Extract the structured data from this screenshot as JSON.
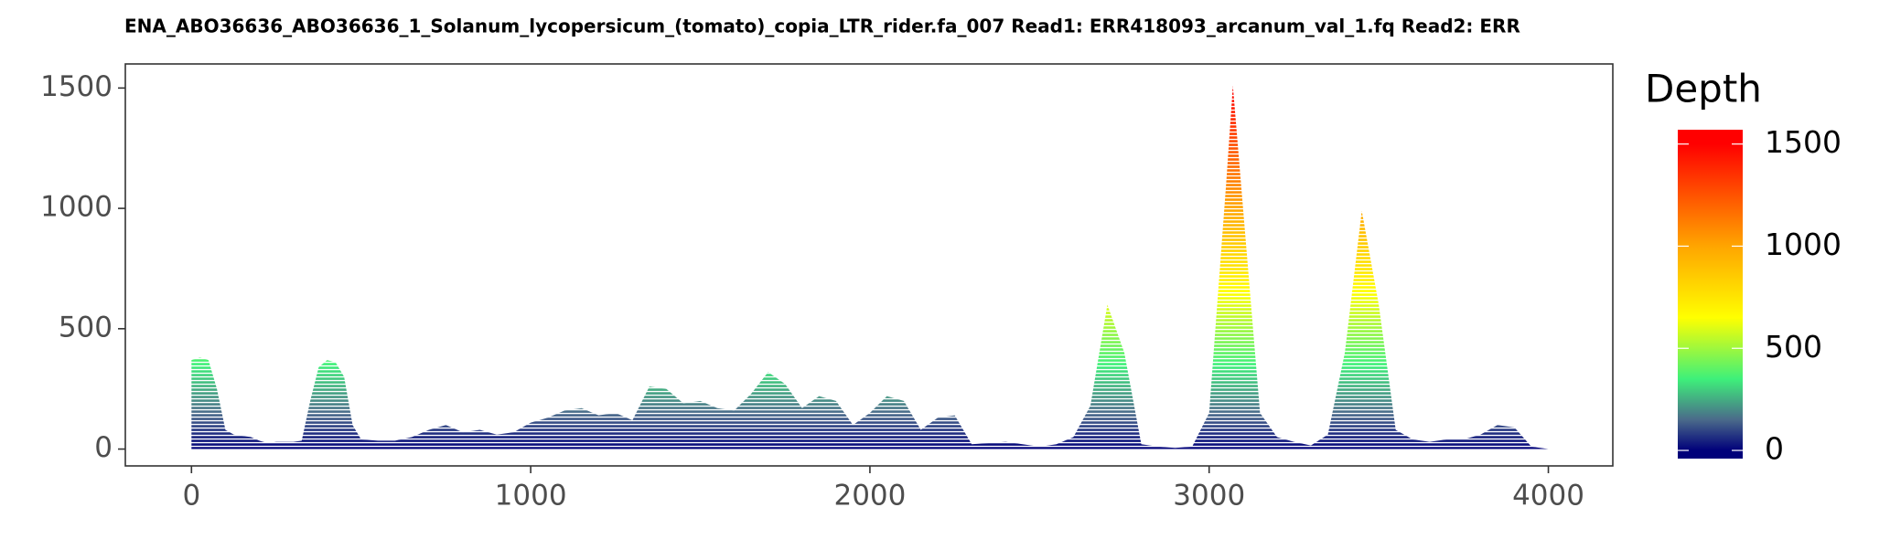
{
  "chart_data": {
    "type": "area",
    "title": "ENA_ABO36636_ABO36636_1_Solanum_lycopersicum_(tomato)_copia_LTR_rider.fa_007   Read1: ERR418093_arcanum_val_1.fq   Read2: ERR",
    "legend_title": "Depth",
    "x": [
      0,
      25,
      50,
      75,
      100,
      125,
      150,
      175,
      200,
      225,
      250,
      300,
      325,
      350,
      375,
      400,
      425,
      450,
      475,
      500,
      550,
      600,
      650,
      700,
      750,
      800,
      850,
      900,
      950,
      1000,
      1050,
      1100,
      1150,
      1200,
      1250,
      1300,
      1350,
      1400,
      1450,
      1500,
      1550,
      1600,
      1650,
      1700,
      1750,
      1800,
      1850,
      1900,
      1950,
      2000,
      2050,
      2100,
      2150,
      2200,
      2250,
      2300,
      2350,
      2400,
      2450,
      2500,
      2550,
      2600,
      2650,
      2700,
      2750,
      2800,
      2850,
      2900,
      2950,
      3000,
      3050,
      3070,
      3100,
      3150,
      3200,
      3250,
      3300,
      3350,
      3400,
      3450,
      3500,
      3550,
      3600,
      3650,
      3700,
      3750,
      3800,
      3850,
      3900,
      3950,
      4000
    ],
    "values": [
      370,
      380,
      370,
      250,
      80,
      60,
      55,
      50,
      35,
      25,
      30,
      30,
      35,
      200,
      340,
      370,
      360,
      300,
      100,
      40,
      35,
      35,
      50,
      80,
      100,
      70,
      80,
      60,
      70,
      110,
      130,
      160,
      170,
      140,
      150,
      120,
      260,
      250,
      190,
      200,
      170,
      160,
      230,
      320,
      270,
      170,
      220,
      200,
      100,
      150,
      220,
      200,
      80,
      130,
      140,
      20,
      25,
      30,
      20,
      10,
      20,
      50,
      180,
      600,
      400,
      20,
      10,
      5,
      10,
      150,
      1100,
      1510,
      1000,
      150,
      50,
      30,
      15,
      60,
      400,
      990,
      600,
      80,
      40,
      30,
      40,
      40,
      60,
      100,
      90,
      10,
      0
    ],
    "xlim": [
      -195,
      4190
    ],
    "ylim": [
      -70,
      1600
    ],
    "xticks": [
      0,
      1000,
      2000,
      3000,
      4000
    ],
    "yticks": [
      0,
      500,
      1000,
      1500
    ],
    "colorlim": [
      -40,
      1570
    ],
    "colorticks": [
      0,
      500,
      1000,
      1500
    ],
    "colorscale": [
      [
        0,
        "#00007a"
      ],
      [
        150,
        "#4a6a8a"
      ],
      [
        350,
        "#3ef07a"
      ],
      [
        650,
        "#ffff00"
      ],
      [
        1000,
        "#ffa500"
      ],
      [
        1500,
        "#ff0000"
      ]
    ]
  }
}
